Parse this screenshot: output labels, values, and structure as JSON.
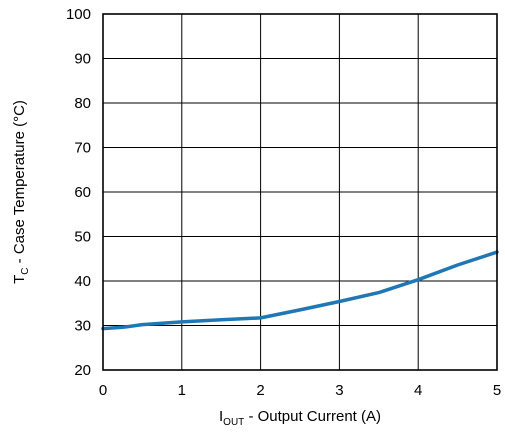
{
  "chart_data": {
    "type": "line",
    "x_ticks": [
      "0",
      "1",
      "2",
      "3",
      "4",
      "5"
    ],
    "y_ticks": [
      "20",
      "30",
      "40",
      "50",
      "60",
      "70",
      "80",
      "90",
      "100"
    ],
    "xlim": [
      0,
      5
    ],
    "ylim": [
      20,
      100
    ],
    "grid": true,
    "xlabel": {
      "main": "I",
      "sub": "OUT",
      "rest": " - Output Current (A)"
    },
    "ylabel": {
      "main": "T",
      "sub": "C",
      "rest": " - Case Temperature (°C)"
    },
    "series": [
      {
        "color": "#1f78b4",
        "x": [
          0,
          0.25,
          0.5,
          1.0,
          1.5,
          2.0,
          2.5,
          3.0,
          3.5,
          4.0,
          4.5,
          5.0
        ],
        "y": [
          29.3,
          29.6,
          30.2,
          30.8,
          31.3,
          31.7,
          33.5,
          35.4,
          37.4,
          40.3,
          43.6,
          46.5
        ]
      }
    ]
  }
}
